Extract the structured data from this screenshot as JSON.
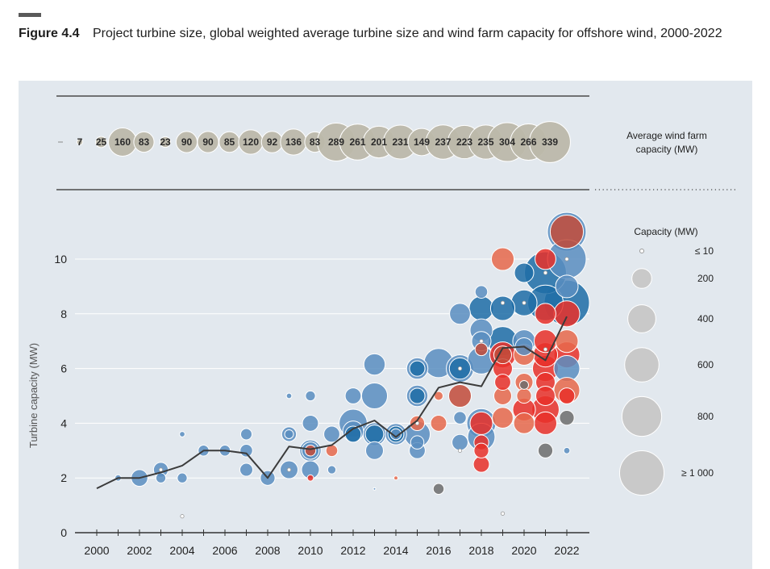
{
  "figure": {
    "label": "Figure 4.4",
    "title": "Project turbine size, global weighted average turbine size and wind farm capacity for offshore wind, 2000-2022"
  },
  "chart_data": {
    "type": "scatter",
    "ylabel": "Turbine capacity (MW)",
    "xlabel": "",
    "x_ticks": [
      "2000",
      "2002",
      "2004",
      "2006",
      "2008",
      "2010",
      "2012",
      "2014",
      "2016",
      "2018",
      "2020",
      "2022"
    ],
    "y_ticks": [
      "0",
      "2",
      "4",
      "6",
      "8",
      "10"
    ],
    "xlim": [
      2000,
      2022
    ],
    "ylim": [
      0,
      11
    ],
    "grid": true,
    "colors": {
      "blue": "#5b8ec0",
      "blue_dark": "#1f6ea6",
      "red": "#e8312a",
      "orange": "#e6694c",
      "brown": "#c24c3a",
      "gray": "#6e6e6e",
      "white": "#ffffff",
      "line": "#3b3b3b",
      "band_bubble": "#bcb8aa",
      "legend_bubble": "#c9c9c9"
    },
    "weighted_average": {
      "x": [
        2000,
        2001,
        2002,
        2003,
        2004,
        2005,
        2006,
        2007,
        2008,
        2009,
        2010,
        2011,
        2012,
        2013,
        2014,
        2015,
        2016,
        2017,
        2018,
        2019,
        2020,
        2021,
        2022
      ],
      "y": [
        1.62,
        2.0,
        2.0,
        2.2,
        2.45,
        3.0,
        3.0,
        2.9,
        2.0,
        3.15,
        3.05,
        3.2,
        3.8,
        4.1,
        3.5,
        4.1,
        5.3,
        5.5,
        5.35,
        6.75,
        6.8,
        6.3,
        7.9
      ]
    },
    "projects": [
      {
        "x": 2001,
        "y": 2.0,
        "size": 20,
        "c": "blue"
      },
      {
        "x": 2002,
        "y": 2.0,
        "size": 140,
        "c": "blue"
      },
      {
        "x": 2003,
        "y": 2.3,
        "size": 110,
        "c": "blue"
      },
      {
        "x": 2003,
        "y": 2.0,
        "size": 50,
        "c": "blue"
      },
      {
        "x": 2003,
        "y": 2.3,
        "size": 5,
        "c": "white"
      },
      {
        "x": 2004,
        "y": 3.6,
        "size": 15,
        "c": "blue"
      },
      {
        "x": 2004,
        "y": 2.0,
        "size": 50,
        "c": "blue"
      },
      {
        "x": 2004,
        "y": 0.6,
        "size": 2,
        "c": "white"
      },
      {
        "x": 2005,
        "y": 3.0,
        "size": 60,
        "c": "blue"
      },
      {
        "x": 2006,
        "y": 3.0,
        "size": 60,
        "c": "blue"
      },
      {
        "x": 2007,
        "y": 3.6,
        "size": 65,
        "c": "blue"
      },
      {
        "x": 2007,
        "y": 3.0,
        "size": 80,
        "c": "blue"
      },
      {
        "x": 2007,
        "y": 2.3,
        "size": 85,
        "c": "blue"
      },
      {
        "x": 2008,
        "y": 2.0,
        "size": 110,
        "c": "blue"
      },
      {
        "x": 2009,
        "y": 5.0,
        "size": 15,
        "c": "blue"
      },
      {
        "x": 2009,
        "y": 3.6,
        "size": 110,
        "c": "blue"
      },
      {
        "x": 2009,
        "y": 3.6,
        "size": 40,
        "c": "blue"
      },
      {
        "x": 2009,
        "y": 2.3,
        "size": 160,
        "c": "blue"
      },
      {
        "x": 2009,
        "y": 2.3,
        "size": 3,
        "c": "white"
      },
      {
        "x": 2010,
        "y": 5.0,
        "size": 50,
        "c": "blue"
      },
      {
        "x": 2010,
        "y": 4.0,
        "size": 130,
        "c": "blue"
      },
      {
        "x": 2010,
        "y": 3.0,
        "size": 230,
        "c": "blue"
      },
      {
        "x": 2010,
        "y": 3.0,
        "size": 150,
        "c": "blue"
      },
      {
        "x": 2010,
        "y": 3.0,
        "size": 60,
        "c": "brown"
      },
      {
        "x": 2010,
        "y": 2.3,
        "size": 160,
        "c": "blue"
      },
      {
        "x": 2010,
        "y": 2.0,
        "size": 20,
        "c": "red"
      },
      {
        "x": 2011,
        "y": 3.6,
        "size": 130,
        "c": "blue"
      },
      {
        "x": 2011,
        "y": 3.0,
        "size": 70,
        "c": "orange"
      },
      {
        "x": 2011,
        "y": 2.3,
        "size": 35,
        "c": "blue"
      },
      {
        "x": 2012,
        "y": 5.0,
        "size": 130,
        "c": "blue"
      },
      {
        "x": 2012,
        "y": 4.0,
        "size": 400,
        "c": "blue"
      },
      {
        "x": 2012,
        "y": 3.7,
        "size": 220,
        "c": "blue"
      },
      {
        "x": 2012,
        "y": 3.6,
        "size": 130,
        "c": "blue_dark"
      },
      {
        "x": 2013,
        "y": 6.15,
        "size": 230,
        "c": "blue"
      },
      {
        "x": 2013,
        "y": 5.0,
        "size": 340,
        "c": "blue"
      },
      {
        "x": 2013,
        "y": 3.6,
        "size": 260,
        "c": "blue"
      },
      {
        "x": 2013,
        "y": 3.6,
        "size": 170,
        "c": "blue_dark"
      },
      {
        "x": 2013,
        "y": 3.0,
        "size": 160,
        "c": "blue"
      },
      {
        "x": 2013,
        "y": 1.6,
        "size": 3,
        "c": "blue"
      },
      {
        "x": 2014,
        "y": 3.6,
        "size": 230,
        "c": "blue"
      },
      {
        "x": 2014,
        "y": 3.6,
        "size": 130,
        "c": "blue_dark"
      },
      {
        "x": 2014,
        "y": 3.6,
        "size": 60,
        "c": "blue"
      },
      {
        "x": 2014,
        "y": 2.0,
        "size": 8,
        "c": "orange"
      },
      {
        "x": 2015,
        "y": 6.0,
        "size": 230,
        "c": "blue"
      },
      {
        "x": 2015,
        "y": 6.0,
        "size": 120,
        "c": "blue_dark"
      },
      {
        "x": 2015,
        "y": 5.0,
        "size": 230,
        "c": "blue"
      },
      {
        "x": 2015,
        "y": 5.0,
        "size": 120,
        "c": "blue_dark"
      },
      {
        "x": 2015,
        "y": 4.0,
        "size": 110,
        "c": "orange"
      },
      {
        "x": 2015,
        "y": 3.6,
        "size": 340,
        "c": "blue"
      },
      {
        "x": 2015,
        "y": 3.3,
        "size": 90,
        "c": "blue"
      },
      {
        "x": 2015,
        "y": 3.0,
        "size": 130,
        "c": "blue"
      },
      {
        "x": 2015,
        "y": 4.0,
        "size": 4,
        "c": "white"
      },
      {
        "x": 2016,
        "y": 6.2,
        "size": 430,
        "c": "blue"
      },
      {
        "x": 2016,
        "y": 5.0,
        "size": 40,
        "c": "orange"
      },
      {
        "x": 2016,
        "y": 4.0,
        "size": 130,
        "c": "orange"
      },
      {
        "x": 2016,
        "y": 1.6,
        "size": 60,
        "c": "gray"
      },
      {
        "x": 2017,
        "y": 8.0,
        "size": 220,
        "c": "blue"
      },
      {
        "x": 2017,
        "y": 6.0,
        "size": 380,
        "c": "blue"
      },
      {
        "x": 2017,
        "y": 6.0,
        "size": 230,
        "c": "blue_dark"
      },
      {
        "x": 2017,
        "y": 6.0,
        "size": 4,
        "c": "white"
      },
      {
        "x": 2017,
        "y": 5.0,
        "size": 260,
        "c": "brown"
      },
      {
        "x": 2017,
        "y": 4.2,
        "size": 80,
        "c": "blue"
      },
      {
        "x": 2017,
        "y": 3.3,
        "size": 130,
        "c": "blue"
      },
      {
        "x": 2017,
        "y": 3.0,
        "size": 4,
        "c": "white"
      },
      {
        "x": 2018,
        "y": 8.8,
        "size": 80,
        "c": "blue"
      },
      {
        "x": 2018,
        "y": 8.2,
        "size": 300,
        "c": "blue_dark"
      },
      {
        "x": 2018,
        "y": 7.4,
        "size": 260,
        "c": "blue"
      },
      {
        "x": 2018,
        "y": 7.0,
        "size": 190,
        "c": "blue"
      },
      {
        "x": 2018,
        "y": 6.7,
        "size": 80,
        "c": "brown"
      },
      {
        "x": 2018,
        "y": 6.3,
        "size": 380,
        "c": "blue"
      },
      {
        "x": 2018,
        "y": 4.0,
        "size": 430,
        "c": "blue"
      },
      {
        "x": 2018,
        "y": 4.0,
        "size": 260,
        "c": "red"
      },
      {
        "x": 2018,
        "y": 3.5,
        "size": 380,
        "c": "blue"
      },
      {
        "x": 2018,
        "y": 3.3,
        "size": 110,
        "c": "red"
      },
      {
        "x": 2018,
        "y": 3.0,
        "size": 110,
        "c": "red"
      },
      {
        "x": 2018,
        "y": 2.5,
        "size": 130,
        "c": "red"
      },
      {
        "x": 2018,
        "y": 7.0,
        "size": 4,
        "c": "white"
      },
      {
        "x": 2019,
        "y": 10.0,
        "size": 260,
        "c": "orange"
      },
      {
        "x": 2019,
        "y": 8.2,
        "size": 300,
        "c": "blue_dark"
      },
      {
        "x": 2019,
        "y": 8.4,
        "size": 4,
        "c": "white"
      },
      {
        "x": 2019,
        "y": 7.0,
        "size": 430,
        "c": "blue_dark"
      },
      {
        "x": 2019,
        "y": 6.5,
        "size": 340,
        "c": "red"
      },
      {
        "x": 2019,
        "y": 6.5,
        "size": 160,
        "c": "brown"
      },
      {
        "x": 2019,
        "y": 6.0,
        "size": 190,
        "c": "red"
      },
      {
        "x": 2019,
        "y": 5.5,
        "size": 130,
        "c": "red"
      },
      {
        "x": 2019,
        "y": 5.0,
        "size": 160,
        "c": "orange"
      },
      {
        "x": 2019,
        "y": 4.2,
        "size": 220,
        "c": "orange"
      },
      {
        "x": 2019,
        "y": 0.7,
        "size": 2,
        "c": "white"
      },
      {
        "x": 2020,
        "y": 9.5,
        "size": 190,
        "c": "blue_dark"
      },
      {
        "x": 2020,
        "y": 8.4,
        "size": 340,
        "c": "blue_dark"
      },
      {
        "x": 2020,
        "y": 8.4,
        "size": 4,
        "c": "white"
      },
      {
        "x": 2020,
        "y": 7.0,
        "size": 260,
        "c": "blue"
      },
      {
        "x": 2020,
        "y": 6.8,
        "size": 160,
        "c": "blue"
      },
      {
        "x": 2020,
        "y": 6.5,
        "size": 220,
        "c": "orange"
      },
      {
        "x": 2020,
        "y": 5.5,
        "size": 160,
        "c": "orange"
      },
      {
        "x": 2020,
        "y": 5.4,
        "size": 40,
        "c": "gray"
      },
      {
        "x": 2020,
        "y": 5.0,
        "size": 110,
        "c": "orange"
      },
      {
        "x": 2020,
        "y": 4.5,
        "size": 260,
        "c": "red"
      },
      {
        "x": 2020,
        "y": 4.0,
        "size": 220,
        "c": "orange"
      },
      {
        "x": 2021,
        "y": 10.0,
        "size": 220,
        "c": "red"
      },
      {
        "x": 2021,
        "y": 9.5,
        "size": 890,
        "c": "blue_dark"
      },
      {
        "x": 2021,
        "y": 9.5,
        "size": 4,
        "c": "white"
      },
      {
        "x": 2021,
        "y": 8.4,
        "size": 640,
        "c": "blue_dark"
      },
      {
        "x": 2021,
        "y": 8.0,
        "size": 220,
        "c": "red"
      },
      {
        "x": 2021,
        "y": 7.0,
        "size": 260,
        "c": "red"
      },
      {
        "x": 2021,
        "y": 6.5,
        "size": 300,
        "c": "red"
      },
      {
        "x": 2021,
        "y": 6.0,
        "size": 340,
        "c": "red"
      },
      {
        "x": 2021,
        "y": 5.5,
        "size": 190,
        "c": "red"
      },
      {
        "x": 2021,
        "y": 5.0,
        "size": 190,
        "c": "red"
      },
      {
        "x": 2021,
        "y": 4.5,
        "size": 380,
        "c": "red"
      },
      {
        "x": 2021,
        "y": 4.0,
        "size": 260,
        "c": "red"
      },
      {
        "x": 2021,
        "y": 3.0,
        "size": 110,
        "c": "gray"
      },
      {
        "x": 2021,
        "y": 6.7,
        "size": 4,
        "c": "white"
      },
      {
        "x": 2022,
        "y": 11.0,
        "size": 760,
        "c": "blue"
      },
      {
        "x": 2022,
        "y": 11.0,
        "size": 560,
        "c": "brown"
      },
      {
        "x": 2022,
        "y": 10.0,
        "size": 760,
        "c": "blue"
      },
      {
        "x": 2022,
        "y": 9.0,
        "size": 260,
        "c": "blue"
      },
      {
        "x": 2022,
        "y": 8.4,
        "size": 1040,
        "c": "blue_dark"
      },
      {
        "x": 2022,
        "y": 8.0,
        "size": 340,
        "c": "red"
      },
      {
        "x": 2022,
        "y": 7.0,
        "size": 260,
        "c": "orange"
      },
      {
        "x": 2022,
        "y": 6.5,
        "size": 340,
        "c": "red"
      },
      {
        "x": 2022,
        "y": 6.0,
        "size": 340,
        "c": "blue"
      },
      {
        "x": 2022,
        "y": 5.2,
        "size": 340,
        "c": "orange"
      },
      {
        "x": 2022,
        "y": 5.0,
        "size": 130,
        "c": "red"
      },
      {
        "x": 2022,
        "y": 4.2,
        "size": 110,
        "c": "gray"
      },
      {
        "x": 2022,
        "y": 3.0,
        "size": 20,
        "c": "blue"
      },
      {
        "x": 2022,
        "y": 10.0,
        "size": 3,
        "c": "white"
      }
    ],
    "top_band": {
      "label": "Average wind farm capacity (MW)",
      "years": [
        2000,
        2001,
        2002,
        2003,
        2004,
        2005,
        2006,
        2007,
        2008,
        2009,
        2010,
        2011,
        2012,
        2013,
        2014,
        2015,
        2016,
        2017,
        2018,
        2019,
        2020,
        2021,
        2022
      ],
      "values": [
        7,
        25,
        160,
        83,
        23,
        90,
        90,
        85,
        120,
        92,
        136,
        83,
        289,
        261,
        201,
        231,
        149,
        237,
        223,
        235,
        304,
        266,
        339
      ]
    },
    "size_legend": {
      "title": "Capacity (MW)",
      "items": [
        {
          "label": "≤ 10",
          "value": 10
        },
        {
          "label": "200",
          "value": 200
        },
        {
          "label": "400",
          "value": 400
        },
        {
          "label": "600",
          "value": 600
        },
        {
          "label": "800",
          "value": 800
        },
        {
          "label": "≥ 1 000",
          "value": 1000
        }
      ]
    }
  }
}
